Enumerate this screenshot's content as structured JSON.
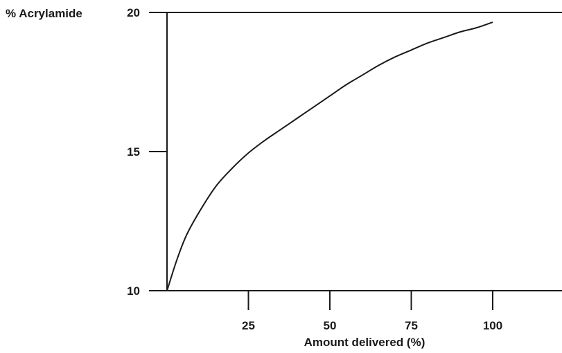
{
  "chart_data": {
    "type": "line",
    "title": "",
    "ylabel": "% Acrylamide",
    "xlabel": "Amount delivered (%)",
    "xlim": [
      0,
      120
    ],
    "ylim": [
      10,
      20
    ],
    "x_ticks": [
      25,
      50,
      75,
      100
    ],
    "y_ticks": [
      10,
      15,
      20
    ],
    "grid": false,
    "legend": "none",
    "series": [
      {
        "color": "#1a1a1a",
        "x": [
          0,
          3,
          6,
          10,
          15,
          20,
          25,
          30,
          35,
          40,
          45,
          50,
          55,
          60,
          65,
          70,
          75,
          80,
          85,
          90,
          95,
          100
        ],
        "y": [
          10,
          11.1,
          12,
          12.85,
          13.75,
          14.4,
          14.95,
          15.4,
          15.8,
          16.2,
          16.6,
          17.0,
          17.4,
          17.75,
          18.1,
          18.4,
          18.65,
          18.9,
          19.1,
          19.3,
          19.45,
          19.65
        ]
      }
    ]
  }
}
